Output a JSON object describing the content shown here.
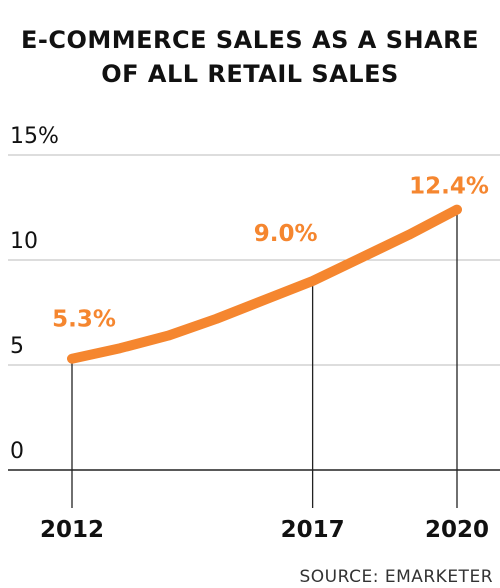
{
  "title_lines": [
    "E-COMMERCE SALES AS A SHARE",
    "OF ALL RETAIL SALES"
  ],
  "source": "SOURCE: EMARKETER",
  "colors": {
    "line": "#F5862F",
    "text": "#111111",
    "grid": "#bbbbbb"
  },
  "chart_data": {
    "type": "line",
    "x": [
      2012,
      2013,
      2014,
      2015,
      2016,
      2017,
      2018,
      2019,
      2020
    ],
    "series": [
      {
        "values": [
          5.3,
          5.8,
          6.4,
          7.2,
          8.1,
          9.0,
          10.1,
          11.2,
          12.4
        ]
      }
    ],
    "ylim": [
      0,
      15
    ],
    "y_ticks": [
      0,
      5,
      10,
      15
    ],
    "y_tick_labels": [
      "0",
      "5",
      "10",
      "15%"
    ],
    "x_tick_labels": [
      {
        "x": 2012,
        "label": "2012"
      },
      {
        "x": 2017,
        "label": "2017"
      },
      {
        "x": 2020,
        "label": "2020"
      }
    ],
    "annotations": [
      {
        "x": 2012,
        "y": 5.3,
        "label": "5.3%"
      },
      {
        "x": 2017,
        "y": 9.0,
        "label": "9.0%"
      },
      {
        "x": 2020,
        "y": 12.4,
        "label": "12.4%"
      }
    ],
    "grid": true,
    "xlabel": "",
    "ylabel": ""
  }
}
